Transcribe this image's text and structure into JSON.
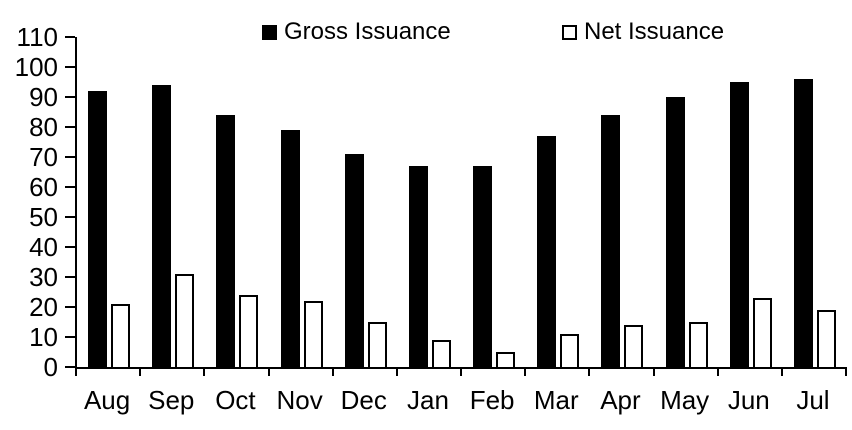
{
  "chart_data": {
    "type": "bar",
    "title": "",
    "xlabel": "",
    "ylabel": "",
    "categories": [
      "Aug",
      "Sep",
      "Oct",
      "Nov",
      "Dec",
      "Jan",
      "Feb",
      "Mar",
      "Apr",
      "May",
      "Jun",
      "Jul"
    ],
    "series": [
      {
        "name": "Gross Issuance",
        "fill": "#000000",
        "stroke": "#000000",
        "values": [
          92,
          94,
          84,
          79,
          71,
          67,
          67,
          77,
          84,
          90,
          95,
          96
        ]
      },
      {
        "name": "Net Issuance",
        "fill": "#ffffff",
        "stroke": "#000000",
        "values": [
          21,
          31,
          24,
          22,
          15,
          9,
          5,
          11,
          14,
          15,
          23,
          19
        ]
      }
    ],
    "ylim": [
      0,
      110
    ],
    "yticks": [
      0,
      10,
      20,
      30,
      40,
      50,
      60,
      70,
      80,
      90,
      100,
      110
    ],
    "grid": false,
    "legend_position": "top",
    "axis_color": "#000000",
    "background": "#ffffff"
  }
}
